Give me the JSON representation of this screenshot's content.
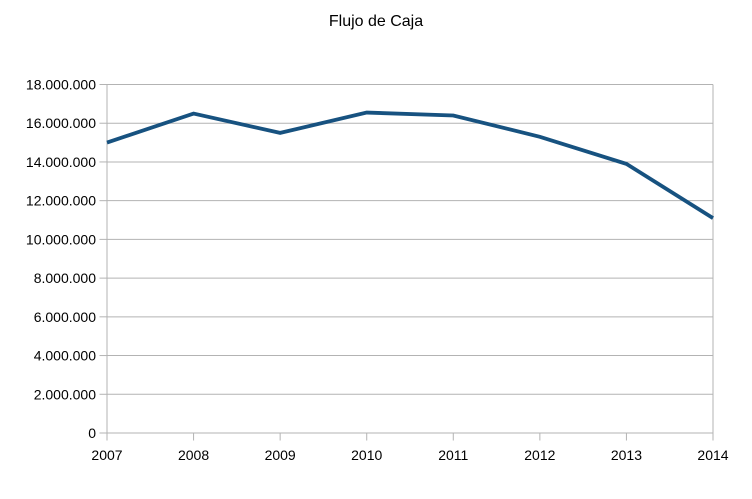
{
  "page": {
    "background": "#ffffff"
  },
  "chart_data": {
    "type": "line",
    "title": "Flujo de Caja",
    "categories": [
      "2007",
      "2008",
      "2009",
      "2010",
      "2011",
      "2012",
      "2013",
      "2014"
    ],
    "series": [
      {
        "name": "Flujo de Caja",
        "color": "#175280",
        "values": [
          15000000,
          16500000,
          15500000,
          16550000,
          16400000,
          15300000,
          13900000,
          11100000
        ]
      }
    ],
    "xlabel": "",
    "ylabel": "",
    "ylim": [
      0,
      18000000
    ],
    "y_tick_step": 2000000,
    "y_tick_labels": [
      "0",
      "2.000.000",
      "4.000.000",
      "6.000.000",
      "8.000.000",
      "10.000.000",
      "12.000.000",
      "14.000.000",
      "16.000.000",
      "18.000.000"
    ],
    "grid": "horizontal-only",
    "legend": "none",
    "colors": {
      "grid": "#b3b3b3",
      "axis": "#b3b3b3",
      "text": "#000000",
      "plot_background": "#ffffff"
    }
  }
}
